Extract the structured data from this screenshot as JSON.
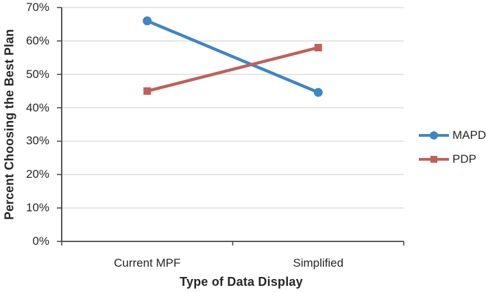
{
  "chart_data": {
    "type": "line",
    "title": "",
    "xlabel": "Type of Data Display",
    "ylabel": "Percent Choosing the Best Plan",
    "categories": [
      "Current MPF",
      "Simplified"
    ],
    "series": [
      {
        "name": "MAPD",
        "values": [
          66,
          44.6
        ],
        "color": "#3e86c5",
        "marker": "circle"
      },
      {
        "name": "PDP",
        "values": [
          45,
          58
        ],
        "color": "#c0605c",
        "marker": "square"
      }
    ],
    "y_axis": {
      "min": 0,
      "max": 70,
      "step": 10,
      "tick_labels": [
        "0%",
        "10%",
        "20%",
        "30%",
        "40%",
        "50%",
        "60%",
        "70%"
      ]
    },
    "grid": "horizontal",
    "legend_position": "right",
    "colors": {
      "axis": "#404040",
      "gridline": "#d6d6d6",
      "text": "#262626",
      "background": "#ffffff"
    }
  }
}
